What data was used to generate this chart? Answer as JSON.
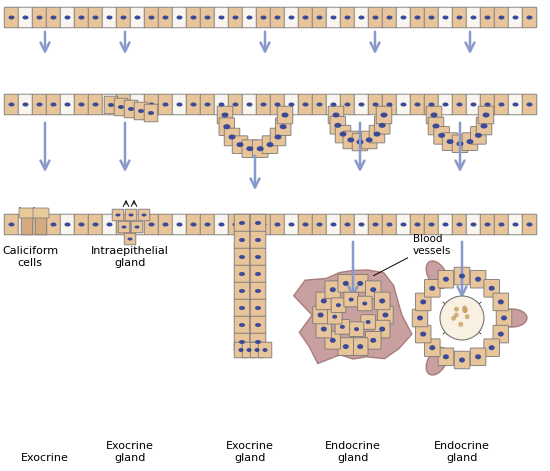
{
  "background_color": "#ffffff",
  "cell_fill_tan": "#e8c49a",
  "cell_fill_white": "#f8f4ee",
  "cell_edge": "#777777",
  "nucleus_fill": "#3a4a99",
  "arrow_color": "#8899cc",
  "blood_vessel_color": "#c09090",
  "blood_vessel_edge": "#a07070",
  "label_fontsize": 8.0,
  "labels": {
    "caliciform": "Caliciform\ncells",
    "intraepithelial": "Intraepithelial\ngland",
    "exocrine1": "Exocrine",
    "exocrine_gland1": "Exocrine\ngland",
    "exocrine_gland2": "Exocrine\ngland",
    "endocrine_gland1": "Endocrine\ngland",
    "endocrine_gland2": "Endocrine\ngland",
    "blood_vessels": "Blood\nvessels"
  }
}
